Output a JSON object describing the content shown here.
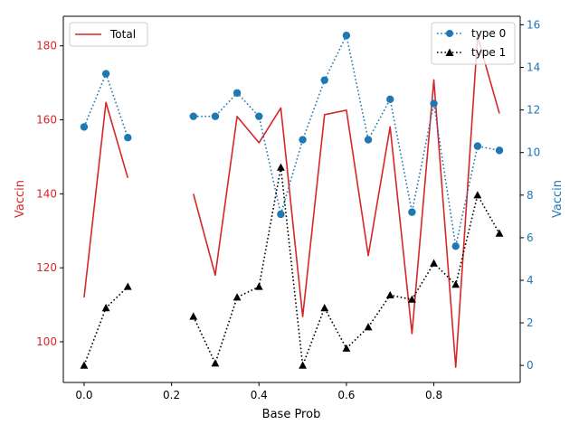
{
  "chart_data": {
    "type": "line",
    "xlabel": "Base Prob",
    "ylabel_left": "Vaccin",
    "ylabel_right": "Vaccin",
    "xlim": [
      -0.0475,
      0.9975
    ],
    "ylim_left": [
      89,
      188
    ],
    "ylim_right": [
      -0.8,
      16.4
    ],
    "x_ticks": [
      0.0,
      0.2,
      0.4,
      0.6,
      0.8
    ],
    "x_tick_labels": [
      "0.0",
      "0.2",
      "0.4",
      "0.6",
      "0.8"
    ],
    "left_ticks": [
      100,
      120,
      140,
      160,
      180
    ],
    "left_tick_labels": [
      "100",
      "120",
      "140",
      "160",
      "180"
    ],
    "right_ticks": [
      0,
      2,
      4,
      6,
      8,
      10,
      12,
      14,
      16
    ],
    "right_tick_labels": [
      "0",
      "2",
      "4",
      "6",
      "8",
      "10",
      "12",
      "14",
      "16"
    ],
    "x": [
      0.0,
      0.05,
      0.1,
      0.15,
      0.2,
      0.25,
      0.3,
      0.35,
      0.4,
      0.45,
      0.5,
      0.55,
      0.6,
      0.65,
      0.7,
      0.75,
      0.8,
      0.85,
      0.9,
      0.95
    ],
    "series": [
      {
        "name": "Total",
        "axis": "left",
        "color": "#d62728",
        "style": "solid",
        "marker": "none",
        "values": [
          112,
          164.7,
          144.3,
          null,
          null,
          140,
          118,
          160.9,
          153.8,
          163.2,
          106.8,
          161.4,
          162.6,
          123.3,
          158.1,
          102.2,
          170.8,
          93.1,
          182.5,
          161.7
        ]
      },
      {
        "name": "type 0",
        "axis": "right",
        "color": "#1f77b4",
        "style": "dotted",
        "marker": "circle",
        "values": [
          11.2,
          13.7,
          10.7,
          null,
          null,
          11.7,
          11.7,
          12.8,
          11.7,
          7.1,
          10.6,
          13.4,
          15.5,
          10.6,
          12.5,
          7.2,
          12.3,
          5.6,
          10.3,
          10.1
        ]
      },
      {
        "name": "type 1",
        "axis": "right",
        "color": "#000000",
        "style": "dotted",
        "marker": "triangle",
        "values": [
          0.0,
          2.7,
          3.7,
          null,
          null,
          2.3,
          0.1,
          3.2,
          3.7,
          9.3,
          0.0,
          2.7,
          0.8,
          1.8,
          3.3,
          3.1,
          4.8,
          3.8,
          8.0,
          6.2
        ]
      }
    ],
    "legends": [
      {
        "placement": "upper-left",
        "items": [
          "Total"
        ]
      },
      {
        "placement": "upper-right",
        "items": [
          "type 0",
          "type 1"
        ]
      }
    ],
    "colors": {
      "left_axis": "#d62728",
      "right_axis": "#1f77b4",
      "frame": "#000000"
    }
  }
}
